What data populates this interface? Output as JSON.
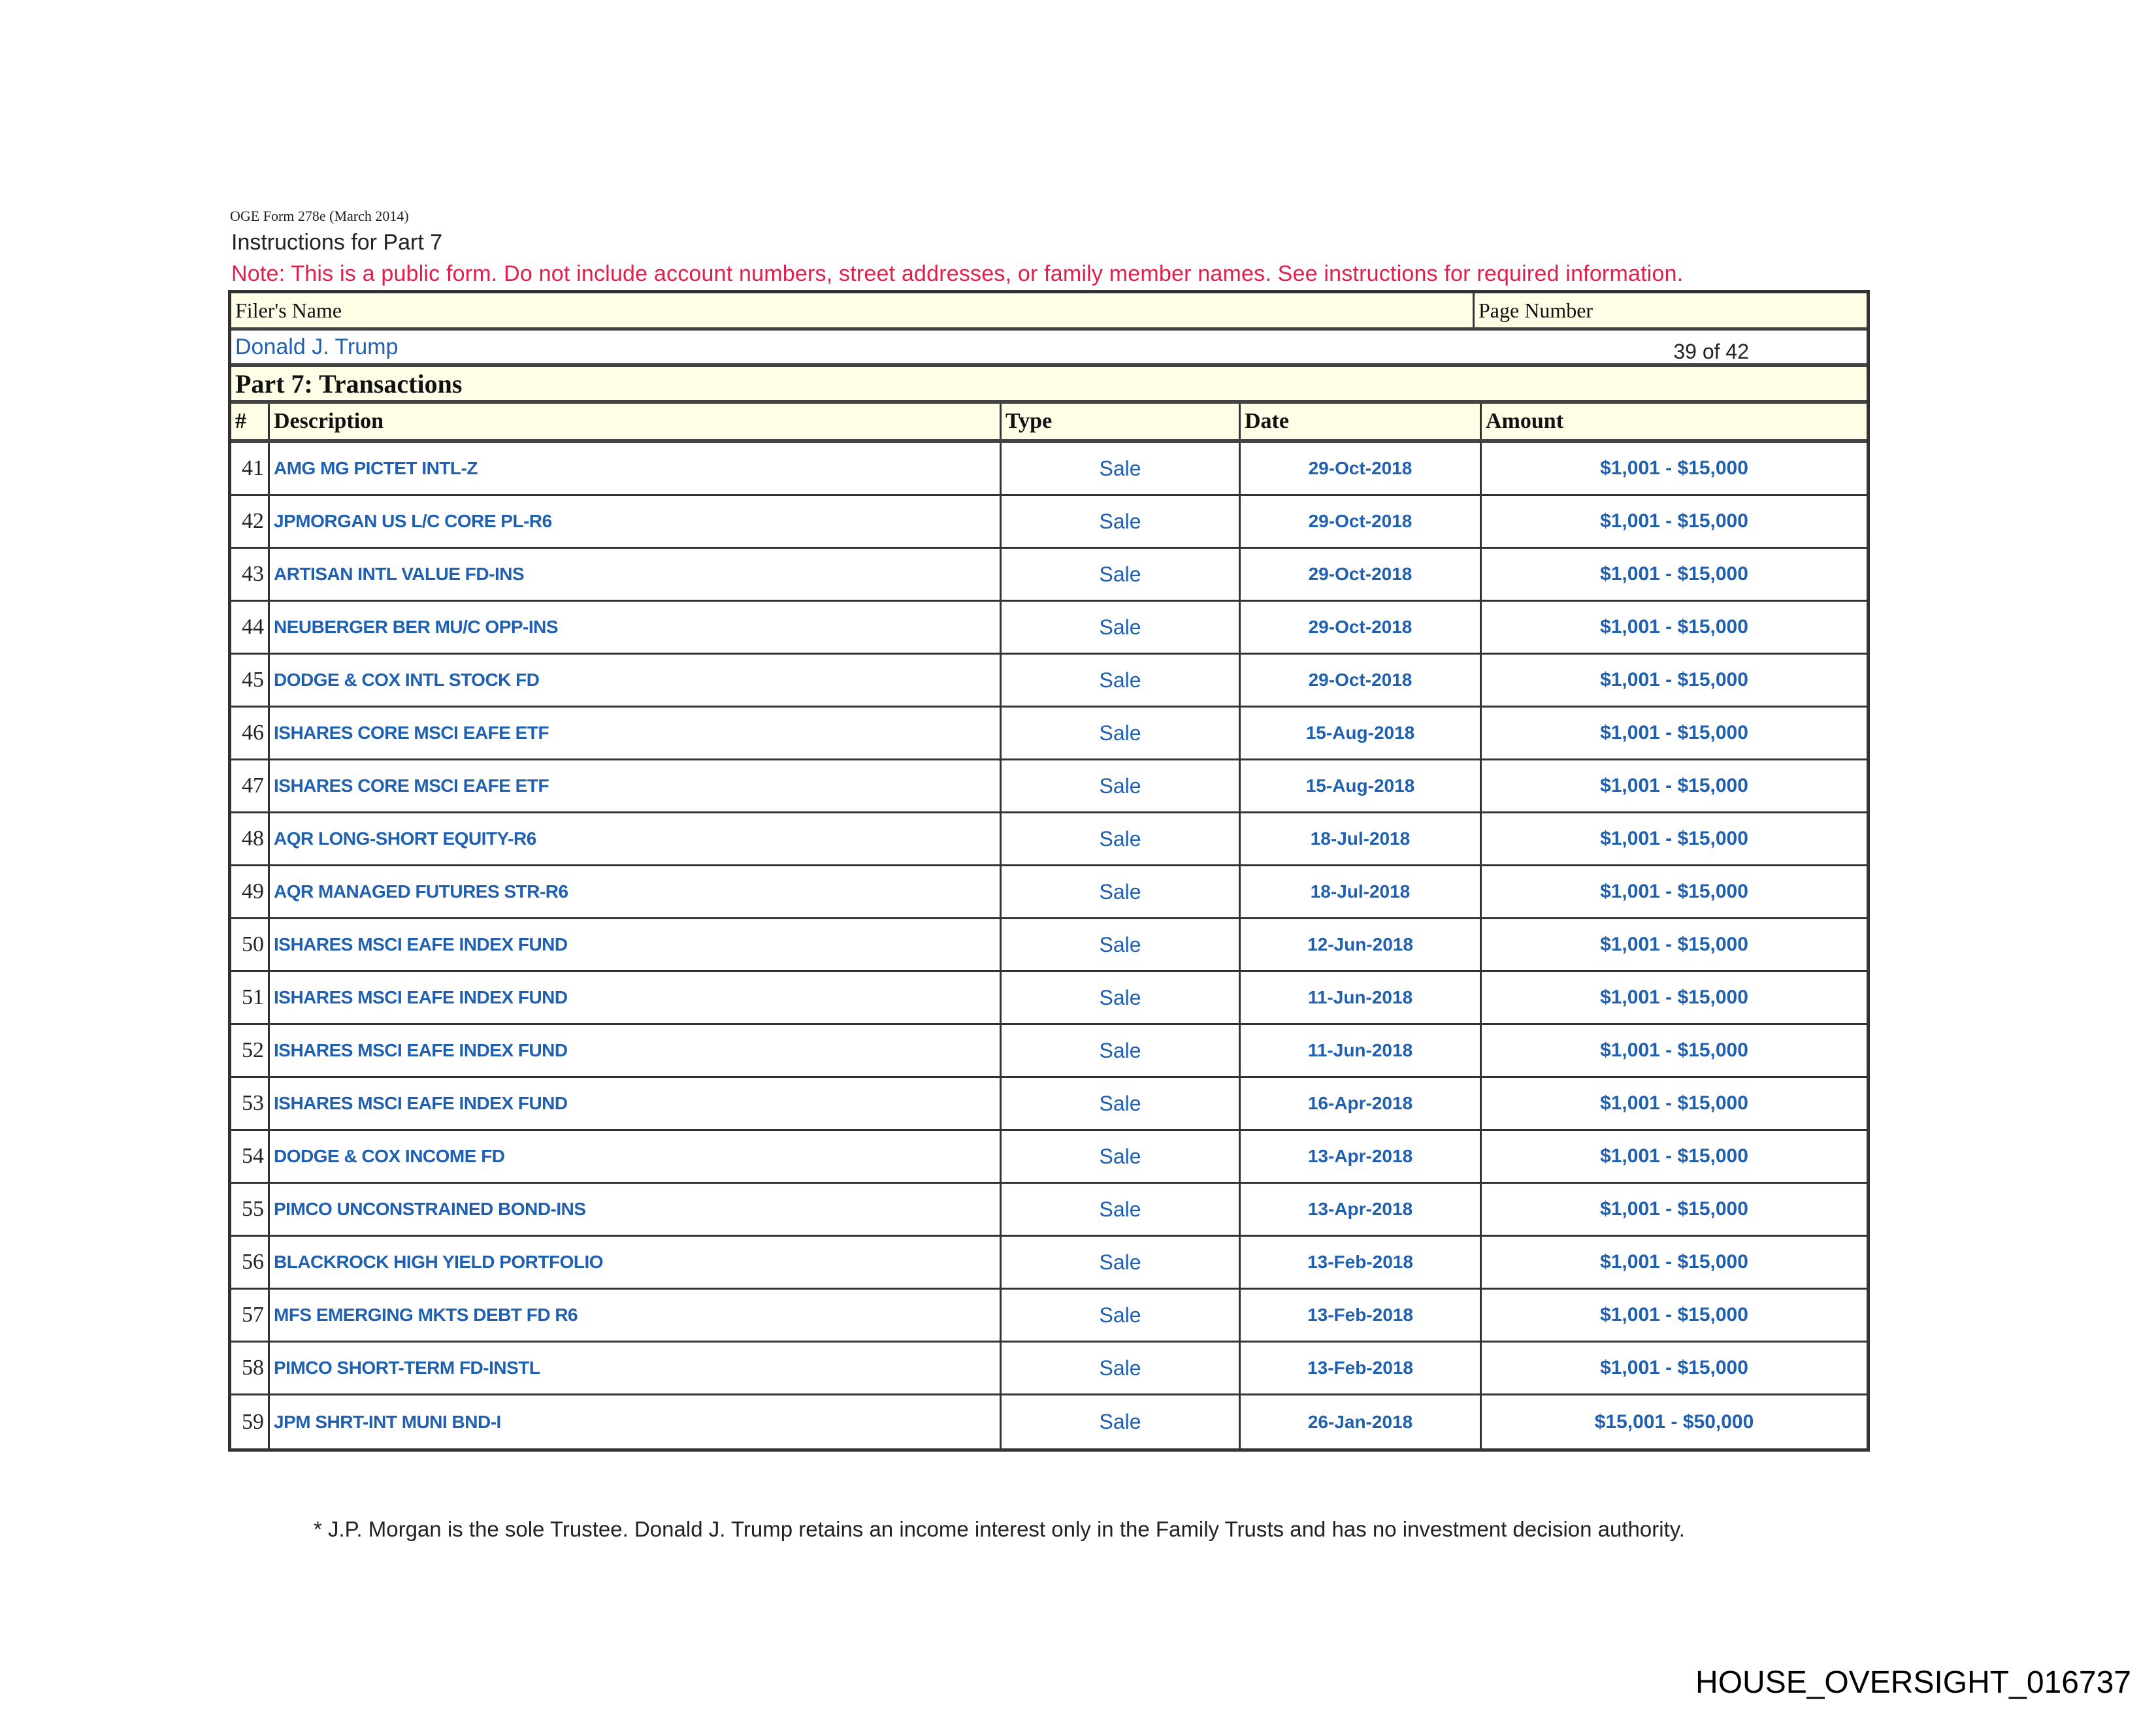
{
  "header": {
    "form_id": "OGE Form 278e (March 2014)",
    "instructions": "Instructions for Part 7",
    "note": "Note: This is a public form. Do not include account numbers, street addresses, or family member names.  See instructions for required information.",
    "note_color": "#e0204a"
  },
  "filer": {
    "name_label": "Filer's Name",
    "name": "Donald J. Trump",
    "page_label": "Page Number",
    "page": "39 of 42"
  },
  "part": {
    "title": "Part 7: Transactions",
    "columns": [
      "#",
      "Description",
      "Type",
      "Date",
      "Amount"
    ],
    "rows": [
      {
        "num": "41",
        "description": "AMG MG PICTET INTL-Z",
        "type": "Sale",
        "date": "29-Oct-2018",
        "amount": "$1,001 - $15,000"
      },
      {
        "num": "42",
        "description": "JPMORGAN US L/C CORE PL-R6",
        "type": "Sale",
        "date": "29-Oct-2018",
        "amount": "$1,001 - $15,000"
      },
      {
        "num": "43",
        "description": "ARTISAN INTL VALUE FD-INS",
        "type": "Sale",
        "date": "29-Oct-2018",
        "amount": "$1,001 - $15,000"
      },
      {
        "num": "44",
        "description": "NEUBERGER BER MU/C OPP-INS",
        "type": "Sale",
        "date": "29-Oct-2018",
        "amount": "$1,001 - $15,000"
      },
      {
        "num": "45",
        "description": "DODGE & COX INTL STOCK FD",
        "type": "Sale",
        "date": "29-Oct-2018",
        "amount": "$1,001 - $15,000"
      },
      {
        "num": "46",
        "description": "ISHARES CORE MSCI EAFE ETF",
        "type": "Sale",
        "date": "15-Aug-2018",
        "amount": "$1,001 - $15,000"
      },
      {
        "num": "47",
        "description": "ISHARES CORE MSCI EAFE ETF",
        "type": "Sale",
        "date": "15-Aug-2018",
        "amount": "$1,001 - $15,000"
      },
      {
        "num": "48",
        "description": "AQR LONG-SHORT EQUITY-R6",
        "type": "Sale",
        "date": "18-Jul-2018",
        "amount": "$1,001 - $15,000"
      },
      {
        "num": "49",
        "description": "AQR MANAGED FUTURES STR-R6",
        "type": "Sale",
        "date": "18-Jul-2018",
        "amount": "$1,001 - $15,000"
      },
      {
        "num": "50",
        "description": "ISHARES MSCI EAFE INDEX FUND",
        "type": "Sale",
        "date": "12-Jun-2018",
        "amount": "$1,001 - $15,000"
      },
      {
        "num": "51",
        "description": "ISHARES MSCI EAFE INDEX FUND",
        "type": "Sale",
        "date": "11-Jun-2018",
        "amount": "$1,001 - $15,000"
      },
      {
        "num": "52",
        "description": "ISHARES MSCI EAFE INDEX FUND",
        "type": "Sale",
        "date": "11-Jun-2018",
        "amount": "$1,001 - $15,000"
      },
      {
        "num": "53",
        "description": "ISHARES MSCI EAFE INDEX FUND",
        "type": "Sale",
        "date": "16-Apr-2018",
        "amount": "$1,001 - $15,000"
      },
      {
        "num": "54",
        "description": "DODGE & COX INCOME FD",
        "type": "Sale",
        "date": "13-Apr-2018",
        "amount": "$1,001 - $15,000"
      },
      {
        "num": "55",
        "description": "PIMCO UNCONSTRAINED BOND-INS",
        "type": "Sale",
        "date": "13-Apr-2018",
        "amount": "$1,001 - $15,000"
      },
      {
        "num": "56",
        "description": "BLACKROCK HIGH YIELD PORTFOLIO",
        "type": "Sale",
        "date": "13-Feb-2018",
        "amount": "$1,001 - $15,000"
      },
      {
        "num": "57",
        "description": "MFS EMERGING MKTS DEBT FD R6",
        "type": "Sale",
        "date": "13-Feb-2018",
        "amount": "$1,001 - $15,000"
      },
      {
        "num": "58",
        "description": "PIMCO SHORT-TERM FD-INSTL",
        "type": "Sale",
        "date": "13-Feb-2018",
        "amount": "$1,001 - $15,000"
      },
      {
        "num": "59",
        "description": "JPM SHRT-INT MUNI BND-I",
        "type": "Sale",
        "date": "26-Jan-2018",
        "amount": "$15,001 - $50,000"
      }
    ]
  },
  "footnote": "* J.P. Morgan is the sole Trustee. Donald J. Trump retains an income interest only in the Family Trusts and has no investment decision authority.",
  "bates": "HOUSE_OVERSIGHT_016737",
  "colors": {
    "value_blue": "#2060b0",
    "header_fill": "#fffde6"
  }
}
